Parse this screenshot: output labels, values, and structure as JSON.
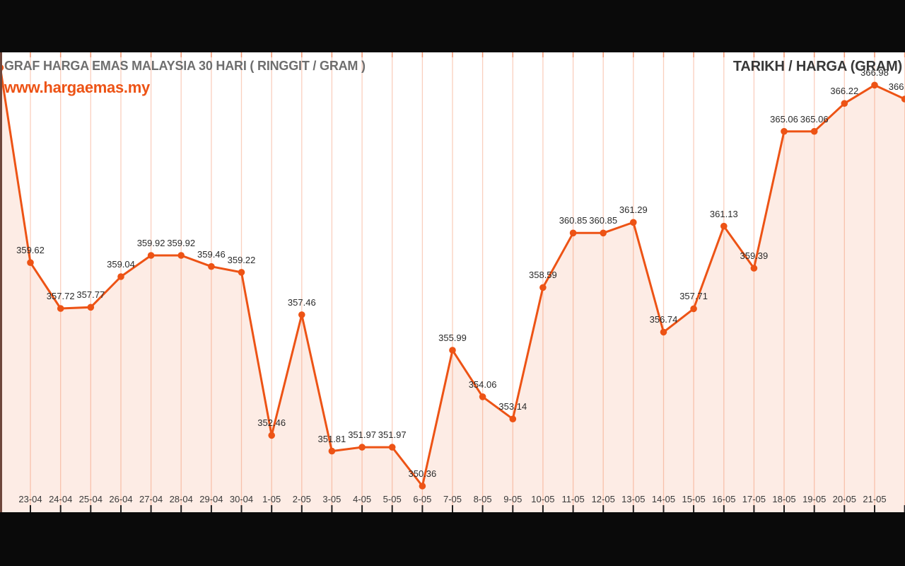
{
  "header": {
    "title": "GRAF HARGA EMAS MALAYSIA 30 HARI ( RINGGIT / GRAM )",
    "website": "www.hargaemas.my",
    "right_title": "TARIKH / HARGA (GRAM)"
  },
  "colors": {
    "line": "#ed5315",
    "area_fill": "rgba(237,83,21,0.11)",
    "gridline": "rgba(237,83,21,0.28)",
    "top_tick": "rgba(237,83,21,0.45)",
    "bottom_tick": "#222222",
    "title_text": "#6e6e6e",
    "right_title_text": "#383838",
    "value_label_text": "#2b2b2b",
    "date_label_text": "#3a3a3a",
    "letterbox": "#0a0a0a",
    "background": "#ffffff"
  },
  "chart_data": {
    "type": "area",
    "title": "GRAF HARGA EMAS MALAYSIA 30 HARI ( RINGGIT / GRAM )",
    "xlabel": "TARIKH",
    "ylabel": "HARGA (GRAM)",
    "grid": "vertical-only",
    "legend": "none",
    "clipped_note": "first point clipped at top-left edge (no visible label), last point clipped at right edge (label partially visible)",
    "points": [
      {
        "date": "",
        "value": 367.7,
        "label": ""
      },
      {
        "date": "23-04",
        "value": 359.62,
        "label": "359.62"
      },
      {
        "date": "24-04",
        "value": 357.72,
        "label": "357.72"
      },
      {
        "date": "25-04",
        "value": 357.77,
        "label": "357.77"
      },
      {
        "date": "26-04",
        "value": 359.04,
        "label": "359.04"
      },
      {
        "date": "27-04",
        "value": 359.92,
        "label": "359.92"
      },
      {
        "date": "28-04",
        "value": 359.92,
        "label": "359.92"
      },
      {
        "date": "29-04",
        "value": 359.46,
        "label": "359.46"
      },
      {
        "date": "30-04",
        "value": 359.22,
        "label": "359.22"
      },
      {
        "date": "1-05",
        "value": 352.46,
        "label": "352.46"
      },
      {
        "date": "2-05",
        "value": 357.46,
        "label": "357.46"
      },
      {
        "date": "3-05",
        "value": 351.81,
        "label": "351.81"
      },
      {
        "date": "4-05",
        "value": 351.97,
        "label": "351.97"
      },
      {
        "date": "5-05",
        "value": 351.97,
        "label": "351.97"
      },
      {
        "date": "6-05",
        "value": 350.36,
        "label": "350.36"
      },
      {
        "date": "7-05",
        "value": 355.99,
        "label": "355.99"
      },
      {
        "date": "8-05",
        "value": 354.06,
        "label": "354.06"
      },
      {
        "date": "9-05",
        "value": 353.14,
        "label": "353.14"
      },
      {
        "date": "10-05",
        "value": 358.59,
        "label": "358.59"
      },
      {
        "date": "11-05",
        "value": 360.85,
        "label": "360.85"
      },
      {
        "date": "12-05",
        "value": 360.85,
        "label": "360.85"
      },
      {
        "date": "13-05",
        "value": 361.29,
        "label": "361.29"
      },
      {
        "date": "14-05",
        "value": 356.74,
        "label": "356.74"
      },
      {
        "date": "15-05",
        "value": 357.71,
        "label": "357.71"
      },
      {
        "date": "16-05",
        "value": 361.13,
        "label": "361.13"
      },
      {
        "date": "17-05",
        "value": 359.39,
        "label": "359.39"
      },
      {
        "date": "18-05",
        "value": 365.06,
        "label": "365.06"
      },
      {
        "date": "19-05",
        "value": 365.06,
        "label": "365.06"
      },
      {
        "date": "20-05",
        "value": 366.22,
        "label": "366.22"
      },
      {
        "date": "21-05",
        "value": 366.98,
        "label": "366.98"
      },
      {
        "date": "",
        "value": 366.4,
        "label": "366"
      }
    ]
  }
}
